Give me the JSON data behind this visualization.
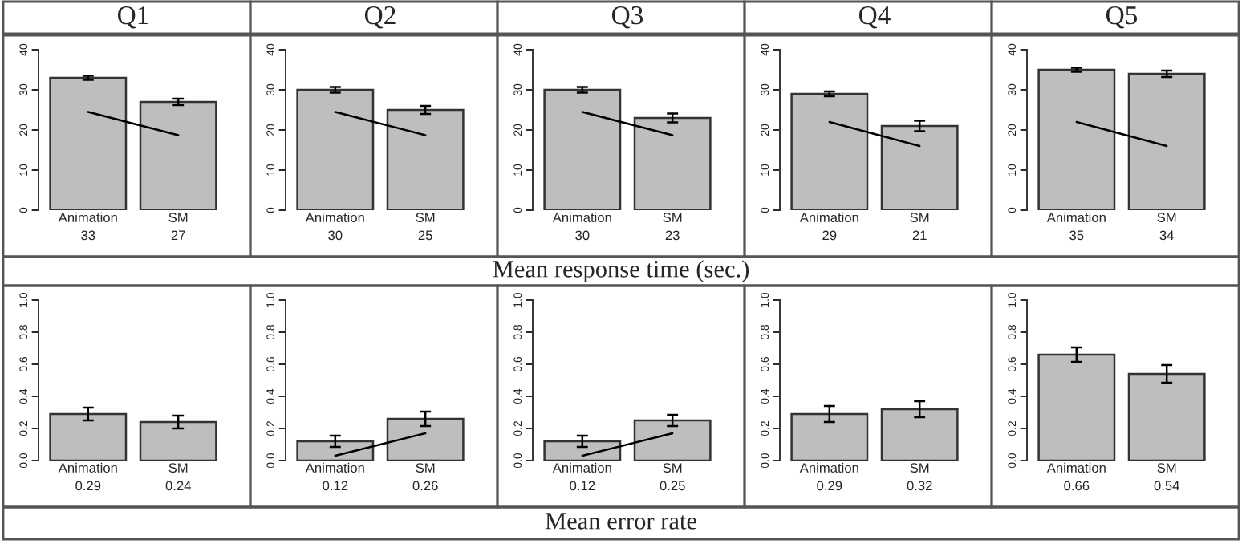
{
  "chart_data": [
    {
      "type": "bar",
      "title": "Q1",
      "categories": [
        "Animation",
        "SM"
      ],
      "ylim": [
        0,
        40
      ],
      "yticks": [
        0,
        10,
        20,
        30,
        40
      ],
      "series": [
        {
          "type": "bar",
          "color": "#bebebe",
          "values": [
            33,
            27
          ],
          "value_labels": [
            "33",
            "27"
          ],
          "errors": [
            0.5,
            0.8
          ]
        },
        {
          "type": "line",
          "color": "#000000",
          "values": [
            24.5,
            18.7
          ]
        }
      ]
    },
    {
      "type": "bar",
      "title": "Q2",
      "categories": [
        "Animation",
        "SM"
      ],
      "ylim": [
        0,
        40
      ],
      "yticks": [
        0,
        10,
        20,
        30,
        40
      ],
      "series": [
        {
          "type": "bar",
          "color": "#bebebe",
          "values": [
            30,
            25
          ],
          "value_labels": [
            "30",
            "25"
          ],
          "errors": [
            0.7,
            1.0
          ]
        },
        {
          "type": "line",
          "color": "#000000",
          "values": [
            24.5,
            18.7
          ]
        }
      ]
    },
    {
      "type": "bar",
      "title": "Q3",
      "categories": [
        "Animation",
        "SM"
      ],
      "ylim": [
        0,
        40
      ],
      "yticks": [
        0,
        10,
        20,
        30,
        40
      ],
      "series": [
        {
          "type": "bar",
          "color": "#bebebe",
          "values": [
            30,
            23
          ],
          "value_labels": [
            "30",
            "23"
          ],
          "errors": [
            0.7,
            1.1
          ]
        },
        {
          "type": "line",
          "color": "#000000",
          "values": [
            24.5,
            18.7
          ]
        }
      ]
    },
    {
      "type": "bar",
      "title": "Q4",
      "categories": [
        "Animation",
        "SM"
      ],
      "ylim": [
        0,
        40
      ],
      "yticks": [
        0,
        10,
        20,
        30,
        40
      ],
      "series": [
        {
          "type": "bar",
          "color": "#bebebe",
          "values": [
            29,
            21
          ],
          "value_labels": [
            "29",
            "21"
          ],
          "errors": [
            0.6,
            1.3
          ]
        },
        {
          "type": "line",
          "color": "#000000",
          "values": [
            22,
            16
          ]
        }
      ]
    },
    {
      "type": "bar",
      "title": "Q5",
      "categories": [
        "Animation",
        "SM"
      ],
      "ylim": [
        0,
        40
      ],
      "yticks": [
        0,
        10,
        20,
        30,
        40
      ],
      "series": [
        {
          "type": "bar",
          "color": "#bebebe",
          "values": [
            35,
            34
          ],
          "value_labels": [
            "35",
            "34"
          ],
          "errors": [
            0.5,
            0.8
          ]
        },
        {
          "type": "line",
          "color": "#000000",
          "values": [
            22,
            16
          ]
        }
      ]
    },
    {
      "type": "other",
      "title": "Mean response time (sec.)"
    },
    {
      "type": "bar",
      "categories": [
        "Animation",
        "SM"
      ],
      "ylim": [
        0,
        1
      ],
      "yticks": [
        {
          "value": 0,
          "label": "0.0"
        },
        {
          "value": 0.2,
          "label": "0.2"
        },
        {
          "value": 0.4,
          "label": "0.4"
        },
        {
          "value": 0.6,
          "label": "0.6"
        },
        {
          "value": 0.8,
          "label": "0.8"
        },
        {
          "value": 1,
          "label": "1.0"
        }
      ],
      "series": [
        {
          "type": "bar",
          "color": "#bebebe",
          "values": [
            0.29,
            0.24
          ],
          "value_labels": [
            "0.29",
            "0.24"
          ],
          "errors": [
            0.04,
            0.04
          ]
        }
      ]
    },
    {
      "type": "bar",
      "categories": [
        "Animation",
        "SM"
      ],
      "ylim": [
        0,
        1
      ],
      "yticks": [
        {
          "value": 0,
          "label": "0.0"
        },
        {
          "value": 0.2,
          "label": "0.2"
        },
        {
          "value": 0.4,
          "label": "0.4"
        },
        {
          "value": 0.6,
          "label": "0.6"
        },
        {
          "value": 0.8,
          "label": "0.8"
        },
        {
          "value": 1,
          "label": "1.0"
        }
      ],
      "series": [
        {
          "type": "bar",
          "color": "#bebebe",
          "values": [
            0.12,
            0.26
          ],
          "value_labels": [
            "0.12",
            "0.26"
          ],
          "errors": [
            0.035,
            0.045
          ]
        },
        {
          "type": "line",
          "color": "#000000",
          "values": [
            0.03,
            0.17
          ]
        }
      ]
    },
    {
      "type": "bar",
      "categories": [
        "Animation",
        "SM"
      ],
      "ylim": [
        0,
        1
      ],
      "yticks": [
        {
          "value": 0,
          "label": "0.0"
        },
        {
          "value": 0.2,
          "label": "0.2"
        },
        {
          "value": 0.4,
          "label": "0.4"
        },
        {
          "value": 0.6,
          "label": "0.6"
        },
        {
          "value": 0.8,
          "label": "0.8"
        },
        {
          "value": 1,
          "label": "1.0"
        }
      ],
      "series": [
        {
          "type": "bar",
          "color": "#bebebe",
          "values": [
            0.12,
            0.25
          ],
          "value_labels": [
            "0.12",
            "0.25"
          ],
          "errors": [
            0.035,
            0.035
          ]
        },
        {
          "type": "line",
          "color": "#000000",
          "values": [
            0.03,
            0.17
          ]
        }
      ]
    },
    {
      "type": "bar",
      "categories": [
        "Animation",
        "SM"
      ],
      "ylim": [
        0,
        1
      ],
      "yticks": [
        {
          "value": 0,
          "label": "0.0"
        },
        {
          "value": 0.2,
          "label": "0.2"
        },
        {
          "value": 0.4,
          "label": "0.4"
        },
        {
          "value": 0.6,
          "label": "0.6"
        },
        {
          "value": 0.8,
          "label": "0.8"
        },
        {
          "value": 1,
          "label": "1.0"
        }
      ],
      "series": [
        {
          "type": "bar",
          "color": "#bebebe",
          "values": [
            0.29,
            0.32
          ],
          "value_labels": [
            "0.29",
            "0.32"
          ],
          "errors": [
            0.05,
            0.05
          ]
        }
      ]
    },
    {
      "type": "bar",
      "categories": [
        "Animation",
        "SM"
      ],
      "ylim": [
        0,
        1
      ],
      "yticks": [
        {
          "value": 0,
          "label": "0.0"
        },
        {
          "value": 0.2,
          "label": "0.2"
        },
        {
          "value": 0.4,
          "label": "0.4"
        },
        {
          "value": 0.6,
          "label": "0.6"
        },
        {
          "value": 0.8,
          "label": "0.8"
        },
        {
          "value": 1,
          "label": "1.0"
        }
      ],
      "series": [
        {
          "type": "bar",
          "color": "#bebebe",
          "values": [
            0.66,
            0.54
          ],
          "value_labels": [
            "0.66",
            "0.54"
          ],
          "errors": [
            0.045,
            0.055
          ]
        }
      ]
    },
    {
      "type": "other",
      "title": "Mean error rate"
    }
  ]
}
